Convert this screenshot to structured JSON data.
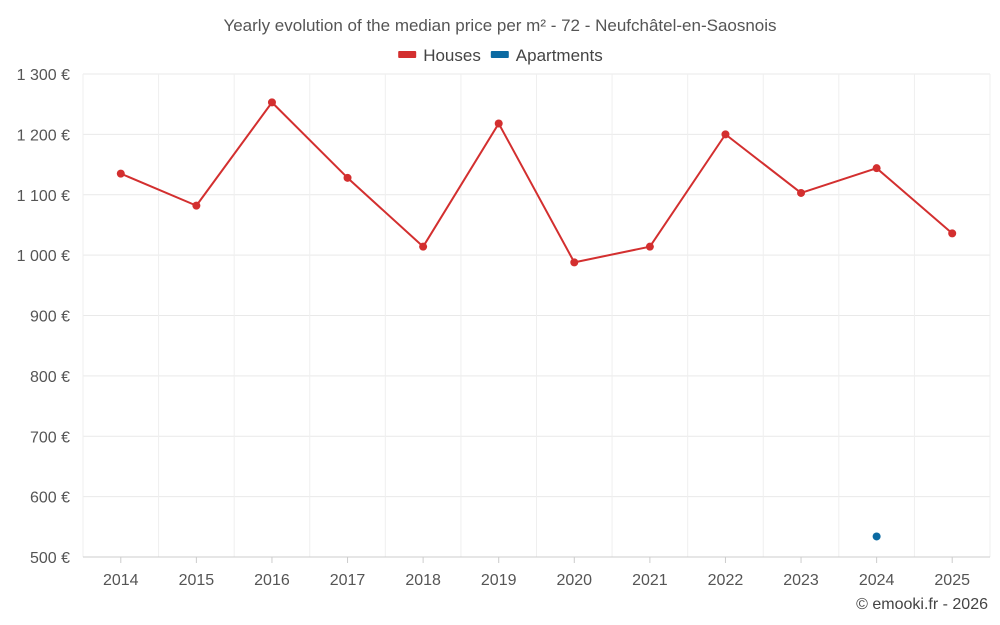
{
  "chart_data": {
    "type": "line",
    "title": "Yearly evolution of the median price per m² - 72 - Neufchâtel-en-Saosnois",
    "categories": [
      "2014",
      "2015",
      "2016",
      "2017",
      "2018",
      "2019",
      "2020",
      "2021",
      "2022",
      "2023",
      "2024",
      "2025"
    ],
    "series": [
      {
        "name": "Houses",
        "color": "#d32f2f",
        "values": [
          1135,
          1082,
          1253,
          1128,
          1014,
          1218,
          988,
          1014,
          1200,
          1103,
          1144,
          1036
        ]
      },
      {
        "name": "Apartments",
        "color": "#0b6aa2",
        "values": [
          null,
          null,
          null,
          null,
          null,
          null,
          null,
          null,
          null,
          null,
          534,
          null
        ]
      }
    ],
    "ylim": [
      500,
      1300
    ],
    "yticks": [
      500,
      600,
      700,
      800,
      900,
      1000,
      1100,
      1200,
      1300
    ],
    "ytick_labels": [
      "500 €",
      "600 €",
      "700 €",
      "800 €",
      "900 €",
      "1 000 €",
      "1 100 €",
      "1 200 €",
      "1 300 €"
    ],
    "grid": true,
    "legend_position": "top-center",
    "xlabel": "",
    "ylabel": ""
  },
  "footer": {
    "credit": "© emooki.fr - 2026"
  }
}
